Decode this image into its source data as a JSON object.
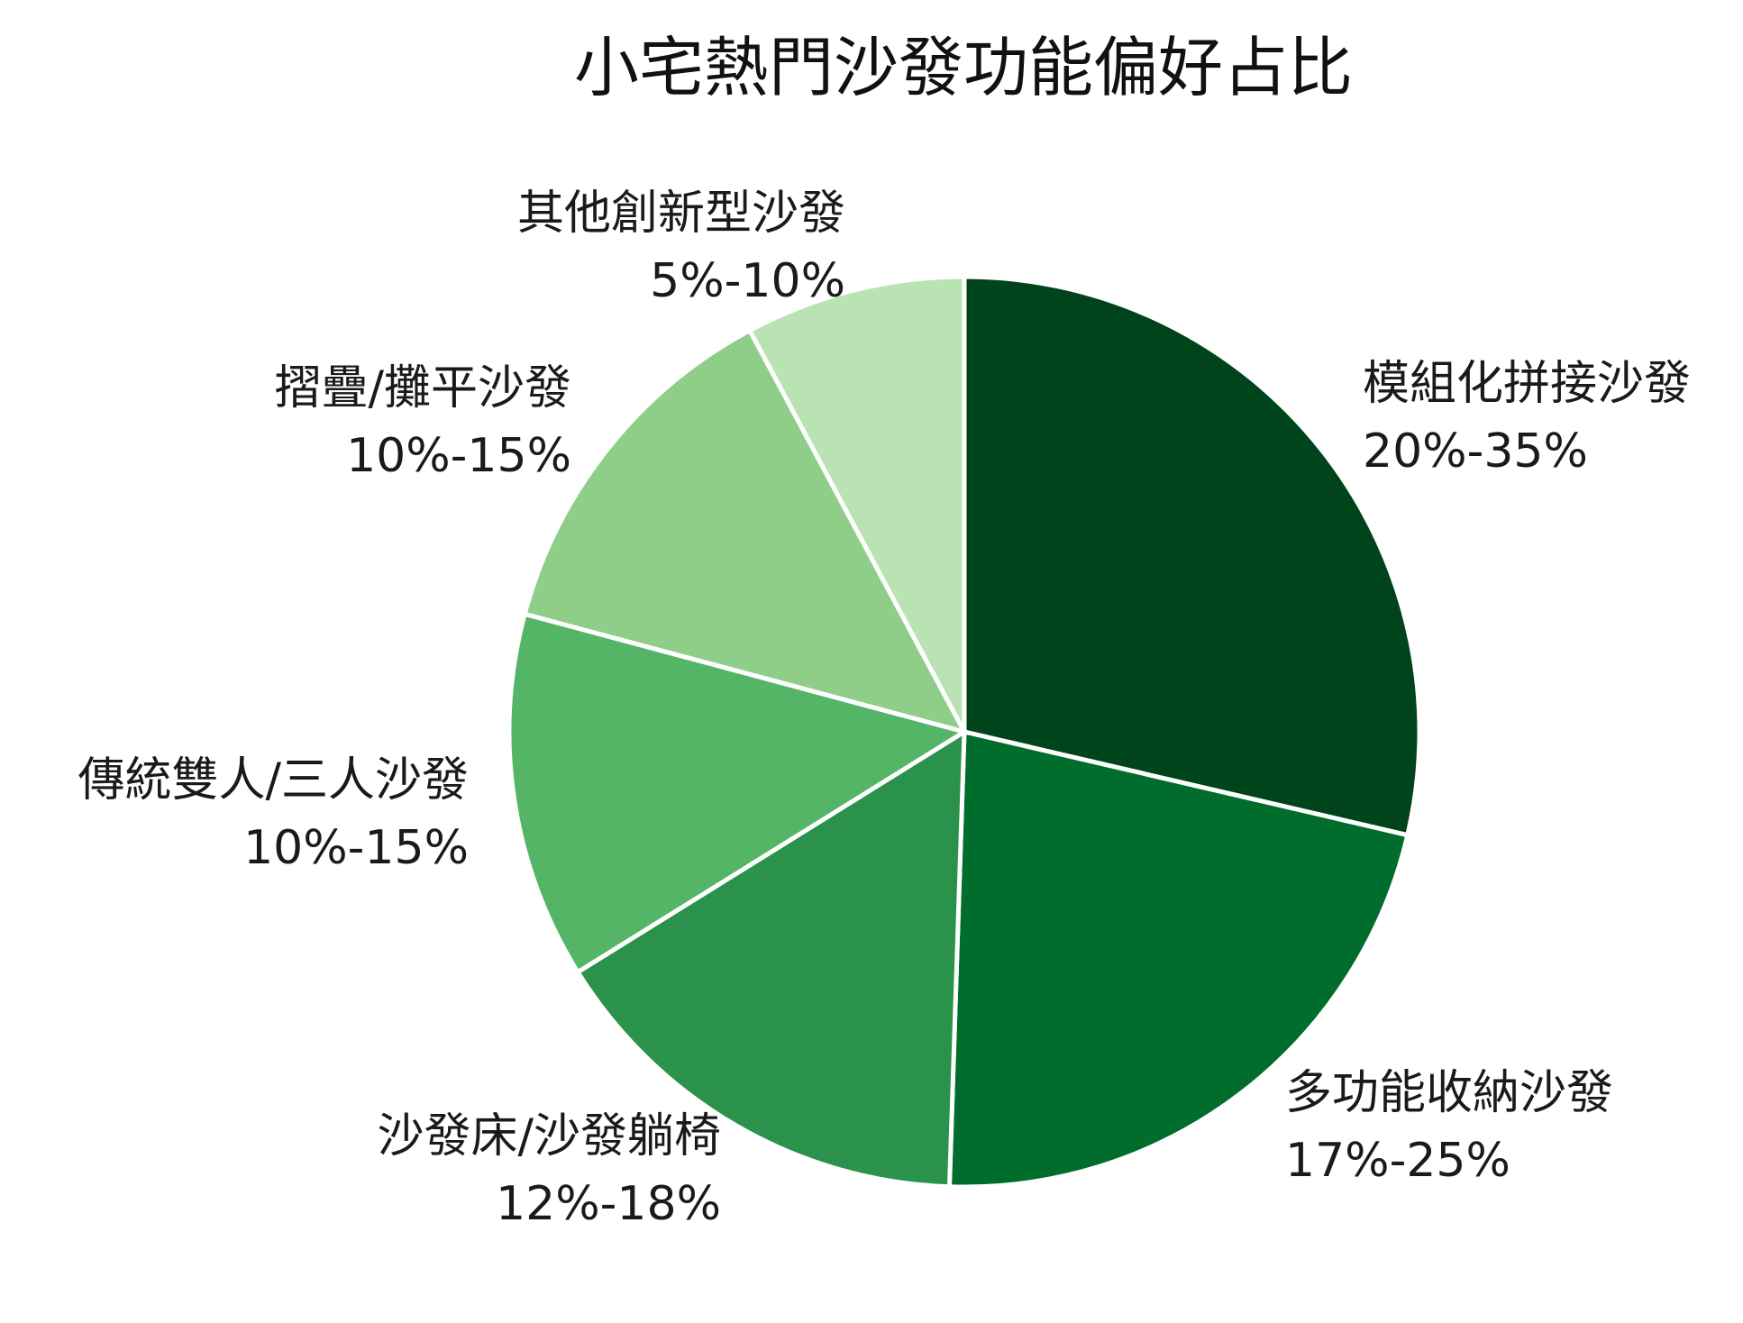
{
  "chart_data": {
    "type": "pie",
    "title": "小宅熱門沙發功能偏好占比",
    "start_angle_deg": 0,
    "direction": "clockwise",
    "categories": [
      "模組化拼接沙發",
      "多功能收納沙發",
      "沙發床/沙發躺椅",
      "傳統雙人/三人沙發",
      "摺疊/攤平沙發",
      "其他創新型沙發"
    ],
    "labels": [
      "20%-35%",
      "17%-25%",
      "12%-18%",
      "10%-15%",
      "10%-15%",
      "5%-10%"
    ],
    "values": [
      27.5,
      21.0,
      15.0,
      12.5,
      12.5,
      7.5
    ],
    "colors": [
      "#00441b",
      "#006d2c",
      "#2a924a",
      "#55b567",
      "#8ece88",
      "#b9e3b3"
    ]
  }
}
